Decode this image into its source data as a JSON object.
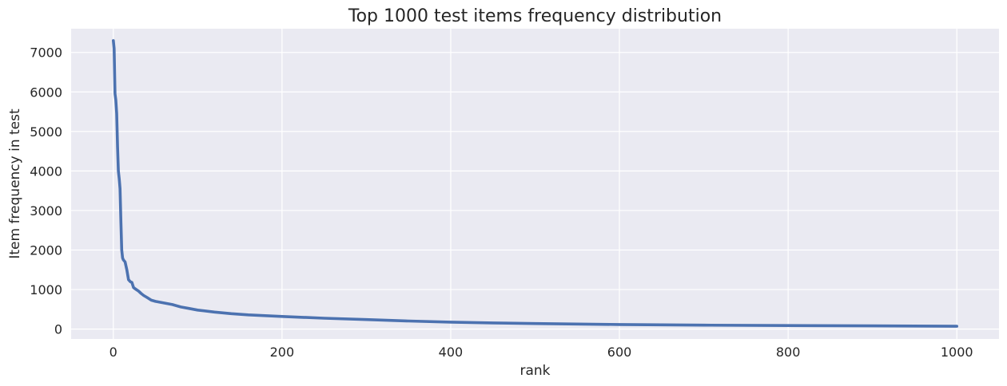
{
  "chart_data": {
    "type": "line",
    "title": "Top 1000 test items frequency distribution",
    "xlabel": "rank",
    "ylabel": "Item frequency in test",
    "xlim": [
      -50,
      1050
    ],
    "ylim": [
      -250,
      7600
    ],
    "xticks": [
      0,
      200,
      400,
      600,
      800,
      1000
    ],
    "yticks": [
      0,
      1000,
      2000,
      3000,
      4000,
      5000,
      6000,
      7000
    ],
    "grid": true,
    "background_color": "#eaeaf2",
    "grid_color": "#ffffff",
    "series": [
      {
        "color": "#4c72b0",
        "x": [
          0,
          1,
          2,
          3,
          4,
          5,
          6,
          7,
          8,
          9,
          10,
          11,
          12,
          14,
          16,
          18,
          20,
          22,
          24,
          26,
          28,
          30,
          33,
          36,
          40,
          45,
          50,
          55,
          60,
          70,
          80,
          90,
          100,
          120,
          140,
          160,
          180,
          200,
          250,
          300,
          350,
          400,
          450,
          500,
          600,
          700,
          800,
          900,
          1000
        ],
        "y": [
          7300,
          7100,
          5950,
          5800,
          5450,
          4600,
          4000,
          3800,
          3550,
          2700,
          2000,
          1800,
          1750,
          1700,
          1500,
          1250,
          1200,
          1180,
          1050,
          1020,
          990,
          960,
          900,
          850,
          800,
          730,
          700,
          680,
          660,
          620,
          560,
          520,
          480,
          430,
          390,
          360,
          340,
          320,
          275,
          240,
          205,
          175,
          155,
          140,
          115,
          100,
          90,
          80,
          70
        ]
      }
    ]
  }
}
